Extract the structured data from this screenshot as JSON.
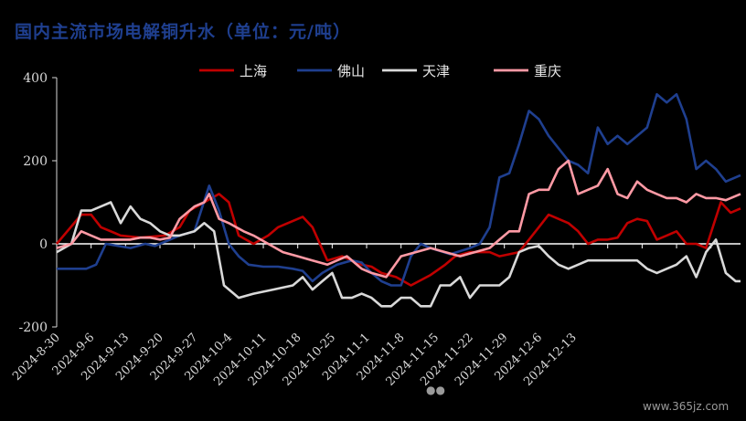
{
  "chart_data": {
    "type": "line",
    "title": "国内主流市场电解铜升水（单位：元/吨）",
    "ylim": [
      -200,
      400
    ],
    "yticks": [
      -200,
      0,
      200,
      400
    ],
    "x_labels": [
      "2024-8-30",
      "2024-9-6",
      "2024-9-13",
      "2024-9-20",
      "2024-9-27",
      "2024-10-4",
      "2024-10-11",
      "2024-10-18",
      "2024-10-25",
      "2024-11-1",
      "2024-11-8",
      "2024-11-15",
      "2024-11-22",
      "2024-11-29",
      "2024-12-6",
      "2024-12-13"
    ],
    "x_range_days": [
      0,
      108
    ],
    "legend": "top",
    "watermark": "www.365jz.com",
    "series": [
      {
        "name": "上海",
        "color": "#c00000",
        "points": [
          [
            0,
            0
          ],
          [
            5,
            70
          ],
          [
            7,
            70
          ],
          [
            9,
            40
          ],
          [
            13,
            20
          ],
          [
            17,
            15
          ],
          [
            22,
            20
          ],
          [
            25,
            40
          ],
          [
            27,
            80
          ],
          [
            30,
            100
          ],
          [
            33,
            120
          ],
          [
            35,
            100
          ],
          [
            37,
            20
          ],
          [
            40,
            0
          ],
          [
            43,
            20
          ],
          [
            45,
            40
          ],
          [
            50,
            65
          ],
          [
            52,
            40
          ],
          [
            55,
            -40
          ],
          [
            58,
            -30
          ],
          [
            60,
            -40
          ],
          [
            62,
            -50
          ],
          [
            64,
            -55
          ],
          [
            66,
            -70
          ],
          [
            69,
            -80
          ],
          [
            72,
            -100
          ],
          [
            76,
            -75
          ],
          [
            79,
            -50
          ],
          [
            81,
            -30
          ],
          [
            84,
            -20
          ],
          [
            88,
            -20
          ],
          [
            90,
            -30
          ],
          [
            92,
            -25
          ],
          [
            94,
            -20
          ],
          [
            96,
            10
          ],
          [
            98,
            40
          ],
          [
            100,
            70
          ],
          [
            102,
            60
          ],
          [
            104,
            50
          ],
          [
            106,
            30
          ],
          [
            108,
            0
          ],
          [
            110,
            10
          ],
          [
            112,
            10
          ],
          [
            114,
            15
          ],
          [
            116,
            50
          ],
          [
            118,
            60
          ],
          [
            120,
            55
          ],
          [
            122,
            10
          ],
          [
            124,
            20
          ],
          [
            126,
            30
          ],
          [
            128,
            0
          ],
          [
            130,
            0
          ],
          [
            132,
            -10
          ],
          [
            135,
            100
          ],
          [
            137,
            75
          ],
          [
            139,
            85
          ]
        ]
      },
      {
        "name": "佛山",
        "color": "#1f3f8f",
        "points": [
          [
            0,
            -60
          ],
          [
            4,
            -60
          ],
          [
            6,
            -60
          ],
          [
            8,
            -50
          ],
          [
            10,
            0
          ],
          [
            15,
            -10
          ],
          [
            18,
            0
          ],
          [
            20,
            -5
          ],
          [
            25,
            20
          ],
          [
            28,
            30
          ],
          [
            31,
            140
          ],
          [
            33,
            80
          ],
          [
            35,
            0
          ],
          [
            37,
            -30
          ],
          [
            39,
            -50
          ],
          [
            42,
            -55
          ],
          [
            45,
            -55
          ],
          [
            48,
            -60
          ],
          [
            50,
            -65
          ],
          [
            52,
            -90
          ],
          [
            54,
            -70
          ],
          [
            57,
            -50
          ],
          [
            60,
            -40
          ],
          [
            62,
            -45
          ],
          [
            64,
            -70
          ],
          [
            66,
            -90
          ],
          [
            68,
            -100
          ],
          [
            70,
            -100
          ],
          [
            72,
            -30
          ],
          [
            74,
            0
          ],
          [
            76,
            -10
          ],
          [
            80,
            -25
          ],
          [
            84,
            -10
          ],
          [
            86,
            0
          ],
          [
            88,
            40
          ],
          [
            90,
            160
          ],
          [
            92,
            170
          ],
          [
            94,
            240
          ],
          [
            96,
            320
          ],
          [
            98,
            300
          ],
          [
            100,
            260
          ],
          [
            102,
            230
          ],
          [
            104,
            200
          ],
          [
            106,
            190
          ],
          [
            108,
            170
          ],
          [
            110,
            280
          ],
          [
            112,
            240
          ],
          [
            114,
            260
          ],
          [
            116,
            240
          ],
          [
            118,
            260
          ],
          [
            120,
            280
          ],
          [
            122,
            360
          ],
          [
            124,
            340
          ],
          [
            126,
            360
          ],
          [
            128,
            300
          ],
          [
            130,
            180
          ],
          [
            132,
            200
          ],
          [
            134,
            180
          ],
          [
            136,
            150
          ],
          [
            139,
            165
          ]
        ]
      },
      {
        "name": "天津",
        "color": "#d9d9d9",
        "points": [
          [
            0,
            -20
          ],
          [
            3,
            0
          ],
          [
            5,
            80
          ],
          [
            7,
            80
          ],
          [
            9,
            90
          ],
          [
            11,
            100
          ],
          [
            13,
            50
          ],
          [
            15,
            90
          ],
          [
            17,
            60
          ],
          [
            19,
            50
          ],
          [
            21,
            30
          ],
          [
            23,
            20
          ],
          [
            25,
            20
          ],
          [
            28,
            30
          ],
          [
            30,
            50
          ],
          [
            32,
            30
          ],
          [
            34,
            -100
          ],
          [
            37,
            -130
          ],
          [
            40,
            -120
          ],
          [
            44,
            -110
          ],
          [
            48,
            -100
          ],
          [
            50,
            -80
          ],
          [
            52,
            -110
          ],
          [
            54,
            -90
          ],
          [
            56,
            -70
          ],
          [
            58,
            -130
          ],
          [
            60,
            -130
          ],
          [
            62,
            -120
          ],
          [
            64,
            -130
          ],
          [
            66,
            -150
          ],
          [
            68,
            -150
          ],
          [
            70,
            -130
          ],
          [
            72,
            -130
          ],
          [
            74,
            -150
          ],
          [
            76,
            -150
          ],
          [
            78,
            -100
          ],
          [
            80,
            -100
          ],
          [
            82,
            -80
          ],
          [
            84,
            -130
          ],
          [
            86,
            -100
          ],
          [
            88,
            -100
          ],
          [
            90,
            -100
          ],
          [
            92,
            -80
          ],
          [
            94,
            -20
          ],
          [
            96,
            -10
          ],
          [
            98,
            -5
          ],
          [
            100,
            -30
          ],
          [
            102,
            -50
          ],
          [
            104,
            -60
          ],
          [
            106,
            -50
          ],
          [
            108,
            -40
          ],
          [
            110,
            -40
          ],
          [
            112,
            -40
          ],
          [
            114,
            -40
          ],
          [
            116,
            -40
          ],
          [
            118,
            -40
          ],
          [
            120,
            -60
          ],
          [
            122,
            -70
          ],
          [
            124,
            -60
          ],
          [
            126,
            -50
          ],
          [
            128,
            -30
          ],
          [
            130,
            -80
          ],
          [
            132,
            -20
          ],
          [
            134,
            10
          ],
          [
            136,
            -70
          ],
          [
            138,
            -90
          ],
          [
            139,
            -90
          ]
        ]
      },
      {
        "name": "重庆",
        "color": "#ff9aa5",
        "points": [
          [
            0,
            -10
          ],
          [
            3,
            0
          ],
          [
            5,
            30
          ],
          [
            7,
            20
          ],
          [
            9,
            10
          ],
          [
            11,
            10
          ],
          [
            13,
            10
          ],
          [
            15,
            10
          ],
          [
            17,
            15
          ],
          [
            19,
            15
          ],
          [
            21,
            10
          ],
          [
            23,
            15
          ],
          [
            25,
            60
          ],
          [
            28,
            90
          ],
          [
            30,
            100
          ],
          [
            31,
            120
          ],
          [
            33,
            60
          ],
          [
            35,
            50
          ],
          [
            38,
            30
          ],
          [
            40,
            20
          ],
          [
            43,
            0
          ],
          [
            46,
            -20
          ],
          [
            49,
            -30
          ],
          [
            52,
            -40
          ],
          [
            55,
            -50
          ],
          [
            57,
            -40
          ],
          [
            59,
            -30
          ],
          [
            62,
            -60
          ],
          [
            64,
            -70
          ],
          [
            67,
            -80
          ],
          [
            70,
            -30
          ],
          [
            73,
            -20
          ],
          [
            76,
            -10
          ],
          [
            79,
            -20
          ],
          [
            82,
            -30
          ],
          [
            85,
            -20
          ],
          [
            88,
            -10
          ],
          [
            90,
            10
          ],
          [
            92,
            30
          ],
          [
            94,
            30
          ],
          [
            96,
            120
          ],
          [
            98,
            130
          ],
          [
            100,
            130
          ],
          [
            102,
            180
          ],
          [
            104,
            200
          ],
          [
            106,
            120
          ],
          [
            108,
            130
          ],
          [
            110,
            140
          ],
          [
            112,
            180
          ],
          [
            114,
            120
          ],
          [
            116,
            110
          ],
          [
            118,
            150
          ],
          [
            120,
            130
          ],
          [
            122,
            120
          ],
          [
            124,
            110
          ],
          [
            126,
            110
          ],
          [
            128,
            100
          ],
          [
            130,
            120
          ],
          [
            132,
            110
          ],
          [
            134,
            110
          ],
          [
            136,
            105
          ],
          [
            139,
            120
          ]
        ]
      }
    ]
  }
}
